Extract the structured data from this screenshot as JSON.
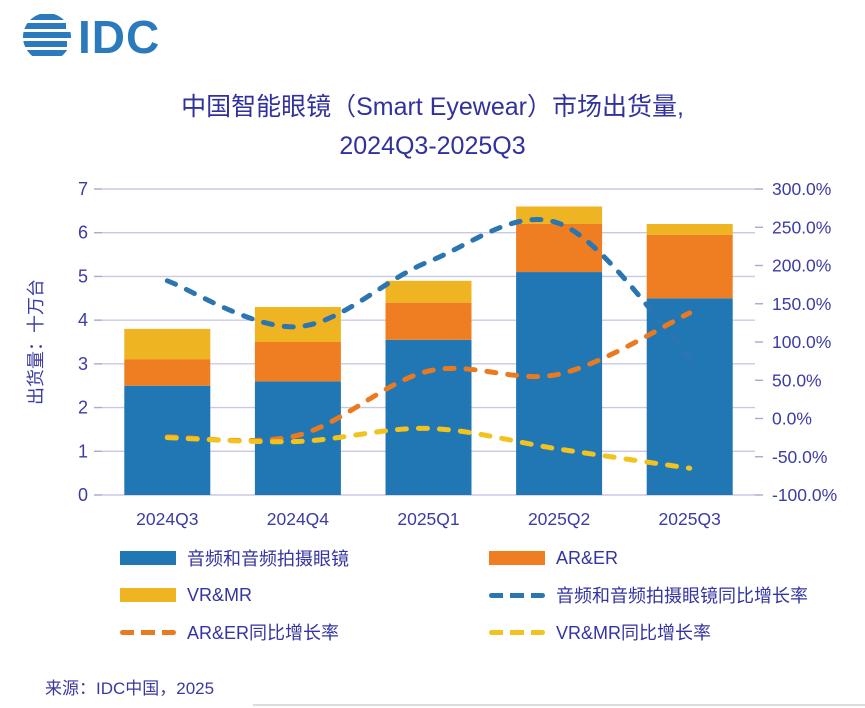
{
  "logo": {
    "text": "IDC"
  },
  "title": {
    "line1": "中国智能眼镜（Smart Eyewear）市场出货量,",
    "line2": "2024Q3-2025Q3"
  },
  "footer": {
    "source": "来源：IDC中国，2025"
  },
  "colors": {
    "logo_blue": "#2b7abd",
    "title_text": "#31319e",
    "axis_text": "#3c3ca5",
    "gridline": "#c9c9e6",
    "tick_stub": "#a8a8d0",
    "bar_blue": "#2077b4",
    "bar_orange": "#ef7d22",
    "bar_yellow": "#efb421",
    "line_blue": "#2b76b0",
    "line_orange": "#ea7a20",
    "line_yellow": "#f2c21e"
  },
  "chart_data": {
    "type": "combo: stacked bar + dashed lines",
    "categories": [
      "2024Q3",
      "2024Q4",
      "2025Q1",
      "2025Q2",
      "2025Q3"
    ],
    "left_axis": {
      "title": "出货量：十万台",
      "min": 0,
      "max": 7,
      "tick_step": 1
    },
    "right_axis": {
      "min": -100,
      "max": 300,
      "tick_step": 50,
      "tick_format": "percent_1dp"
    },
    "grid": "horizontal-on",
    "legend_position": "bottom-two-columns",
    "bar_series": [
      {
        "name": "音频和音频拍摄眼镜",
        "color": "#2077b4",
        "values": [
          2.5,
          2.6,
          3.55,
          5.1,
          4.5
        ]
      },
      {
        "name": "AR&ER",
        "color": "#ef7d22",
        "values": [
          0.6,
          0.9,
          0.85,
          1.1,
          1.45
        ]
      },
      {
        "name": "VR&MR",
        "color": "#efb421",
        "values": [
          0.7,
          0.8,
          0.5,
          0.4,
          0.25
        ]
      }
    ],
    "line_series": [
      {
        "name": "音频和音频拍摄眼镜同比增长率",
        "axis": "right",
        "color": "#2b76b0",
        "values": [
          180,
          120,
          205,
          255,
          80
        ]
      },
      {
        "name": "AR&ER同比增长率",
        "axis": "right",
        "color": "#ea7a20",
        "values": [
          -24,
          -22,
          62,
          58,
          138
        ]
      },
      {
        "name": "VR&MR同比增长率",
        "axis": "right",
        "color": "#f2c21e",
        "values": [
          -25,
          -30,
          -13,
          -40,
          -65
        ]
      }
    ],
    "legend": [
      {
        "label": "音频和音频拍摄眼镜",
        "swatch": "solid",
        "color": "#2077b4"
      },
      {
        "label": "AR&ER",
        "swatch": "solid",
        "color": "#ef7d22"
      },
      {
        "label": "VR&MR",
        "swatch": "solid",
        "color": "#efb421"
      },
      {
        "label": "音频和音频拍摄眼镜同比增长率",
        "swatch": "dashed",
        "color": "#2b76b0"
      },
      {
        "label": "AR&ER同比增长率",
        "swatch": "dashed",
        "color": "#ea7a20"
      },
      {
        "label": "VR&MR同比增长率",
        "swatch": "dashed",
        "color": "#f2c21e"
      }
    ]
  }
}
